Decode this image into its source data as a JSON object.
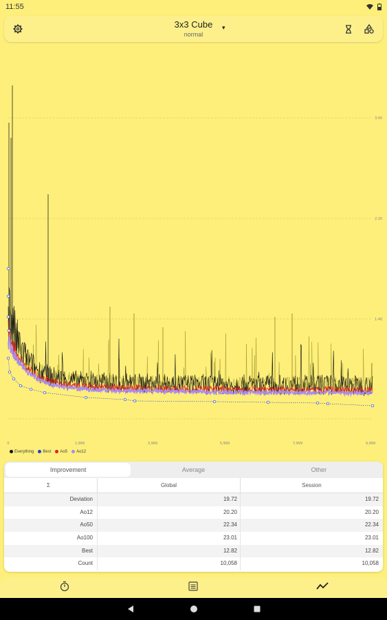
{
  "status_bar": {
    "time": "11:55"
  },
  "app": {
    "title": "3x3 Cube",
    "subtitle": "normal",
    "settings_icon": "gear-icon",
    "timer_icon": "hourglass-icon",
    "shapes_icon": "shapes-icon"
  },
  "chart": {
    "y_ticks": [
      "3:00",
      "2:20",
      "1:40"
    ],
    "x_ticks": [
      "0",
      "1,999",
      "3,999",
      "5,999",
      "7,999",
      "9,999"
    ],
    "legend": [
      {
        "label": "Everything",
        "color": "#111111"
      },
      {
        "label": "Best",
        "color": "#1f3fd6"
      },
      {
        "label": "Ao5",
        "color": "#e02020"
      },
      {
        "label": "Ao12",
        "color": "#a98af0"
      }
    ]
  },
  "chart_data": {
    "type": "line",
    "x_ticks": [
      0,
      1999,
      3999,
      5999,
      7999,
      9999
    ],
    "xlim": [
      0,
      9999
    ],
    "y_ticks": [
      "1:40",
      "2:20",
      "3:00"
    ],
    "series": [
      {
        "name": "Everything",
        "color": "#111111"
      },
      {
        "name": "Best",
        "color": "#1f3fd6"
      },
      {
        "name": "Ao5",
        "color": "#e02020"
      },
      {
        "name": "Ao12",
        "color": "#a98af0"
      }
    ]
  },
  "stats": {
    "tabs": [
      "Improvement",
      "Average",
      "Other"
    ],
    "active_tab": 0,
    "header": {
      "symbol": "Σ",
      "global": "Global",
      "session": "Session"
    },
    "rows": [
      {
        "label": "Deviation",
        "global": "19.72",
        "session": "19.72"
      },
      {
        "label": "Ao12",
        "global": "20.20",
        "session": "20.20"
      },
      {
        "label": "Ao50",
        "global": "22.34",
        "session": "22.34"
      },
      {
        "label": "Ao100",
        "global": "23.01",
        "session": "23.01"
      },
      {
        "label": "Best",
        "global": "12.82",
        "session": "12.82"
      },
      {
        "label": "Count",
        "global": "10,058",
        "session": "10,058"
      }
    ]
  },
  "bottom_nav": [
    "timer-icon",
    "list-icon",
    "trend-icon"
  ]
}
